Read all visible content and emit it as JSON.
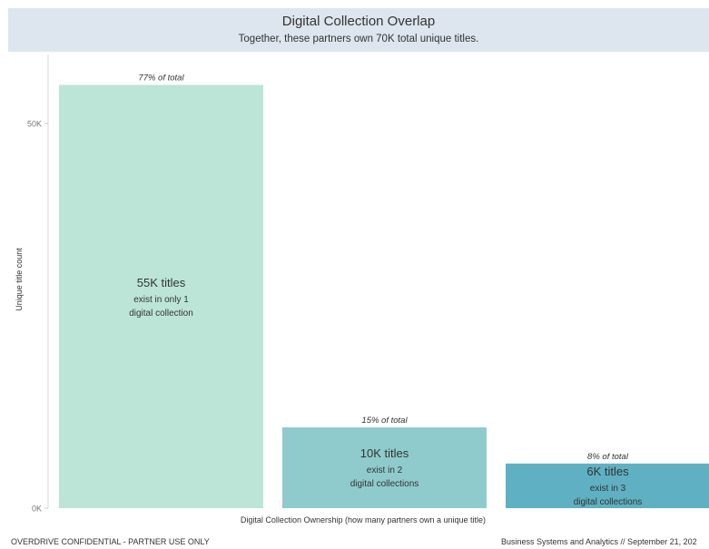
{
  "header": {
    "title": "Digital Collection Overlap",
    "subtitle": "Together, these partners own 70K total unique titles."
  },
  "footer": {
    "left": "OVERDRIVE CONFIDENTIAL - PARTNER USE ONLY",
    "right": "Business Systems and Analytics // September 21, 202"
  },
  "chart_data": {
    "type": "bar",
    "xlabel": "Digital Collection Ownership (how many partners own a unique title)",
    "ylabel": "Unique title count",
    "ylim": [
      0,
      56000
    ],
    "yticks": [
      {
        "value": 0,
        "label": "0K"
      },
      {
        "value": 50000,
        "label": "50K"
      }
    ],
    "grid": false,
    "bars": [
      {
        "value": 55000,
        "percent_label": "77% of total",
        "label_main": "55K titles",
        "label_line2": "exist in only 1",
        "label_line3": "digital collection",
        "color": "#bce5d8"
      },
      {
        "value": 10500,
        "percent_label": "15% of total",
        "label_main": "10K titles",
        "label_line2": "exist in 2",
        "label_line3": "digital collections",
        "color": "#8fcbcc"
      },
      {
        "value": 5800,
        "percent_label": "8% of total",
        "label_main": "6K titles",
        "label_line2": "exist in 3",
        "label_line3": "digital collections",
        "color": "#5fb0c2"
      }
    ]
  }
}
